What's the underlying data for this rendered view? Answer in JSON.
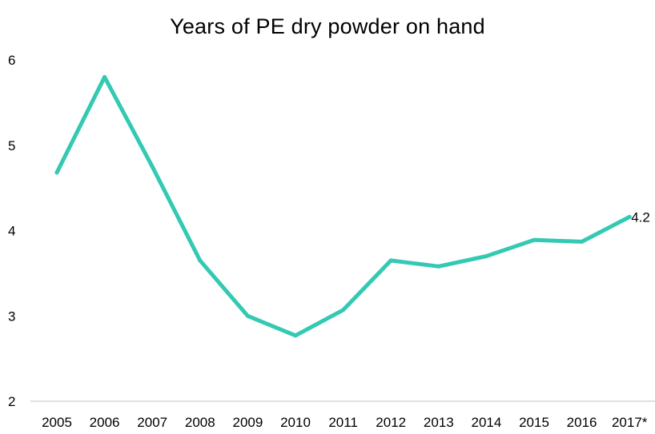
{
  "chart_data": {
    "type": "line",
    "title": "Years of PE dry powder on hand",
    "xlabel": "",
    "ylabel": "",
    "categories": [
      "2005",
      "2006",
      "2007",
      "2008",
      "2009",
      "2010",
      "2011",
      "2012",
      "2013",
      "2014",
      "2015",
      "2016",
      "2017*"
    ],
    "series": [
      {
        "values": [
          4.68,
          5.8,
          4.75,
          3.65,
          3.0,
          2.77,
          3.07,
          3.65,
          3.58,
          3.7,
          3.89,
          3.87,
          4.16
        ]
      }
    ],
    "ylim": [
      2,
      6
    ],
    "yticks": [
      "2",
      "3",
      "4",
      "5",
      "6"
    ],
    "data_labels": [
      {
        "index": 12,
        "text": "4.2"
      }
    ],
    "grid": false,
    "legend": "none",
    "colors": {
      "line": "#33C9B3"
    }
  }
}
